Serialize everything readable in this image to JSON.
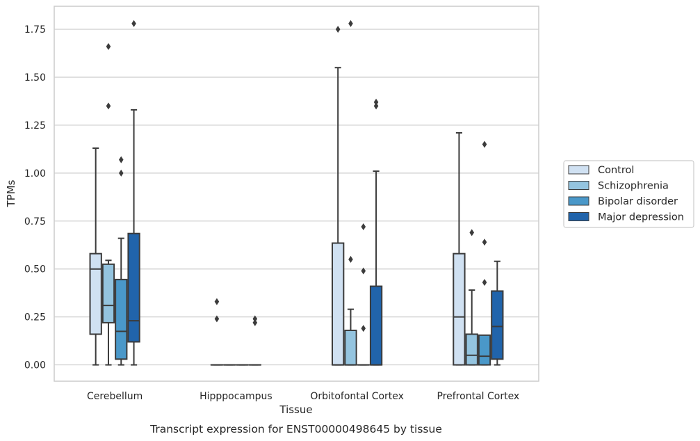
{
  "chart_data": {
    "type": "boxplot",
    "caption": "Transcript expression for ENST00000498645 by tissue",
    "xlabel": "Tissue",
    "ylabel": "TPMs",
    "ylim": [
      -0.085,
      1.87
    ],
    "yticks": [
      0.0,
      0.25,
      0.5,
      0.75,
      1.0,
      1.25,
      1.5,
      1.75
    ],
    "ytick_labels": [
      "0.00",
      "0.25",
      "0.50",
      "0.75",
      "1.00",
      "1.25",
      "1.50",
      "1.75"
    ],
    "grid": "horizontal",
    "legend_position": "right",
    "categories": [
      "Cerebellum",
      "Hipppocampus",
      "Orbitofontal Cortex",
      "Prefrontal Cortex"
    ],
    "series": [
      {
        "name": "Control",
        "color": "#d0e1f2",
        "boxes": [
          {
            "whislo": 0.0,
            "q1": 0.16,
            "med": 0.5,
            "q3": 0.58,
            "whishi": 1.13,
            "fliers": []
          },
          {
            "whislo": 0.0,
            "q1": 0.0,
            "med": 0.0,
            "q3": 0.0,
            "whishi": 0.0,
            "fliers": [
              0.24,
              0.33
            ]
          },
          {
            "whislo": 0.0,
            "q1": 0.0,
            "med": 0.0,
            "q3": 0.635,
            "whishi": 1.55,
            "fliers": [
              1.75
            ]
          },
          {
            "whislo": 0.0,
            "q1": 0.0,
            "med": 0.25,
            "q3": 0.58,
            "whishi": 1.21,
            "fliers": []
          }
        ]
      },
      {
        "name": "Schizophrenia",
        "color": "#94c4df",
        "boxes": [
          {
            "whislo": 0.0,
            "q1": 0.22,
            "med": 0.31,
            "q3": 0.525,
            "whishi": 0.545,
            "fliers": [
              1.35,
              1.66
            ]
          },
          {
            "whislo": 0.0,
            "q1": 0.0,
            "med": 0.0,
            "q3": 0.0,
            "whishi": 0.0,
            "fliers": []
          },
          {
            "whislo": 0.0,
            "q1": 0.0,
            "med": 0.0,
            "q3": 0.18,
            "whishi": 0.29,
            "fliers": [
              0.55,
              1.78
            ]
          },
          {
            "whislo": 0.0,
            "q1": 0.0,
            "med": 0.05,
            "q3": 0.16,
            "whishi": 0.39,
            "fliers": [
              0.69
            ]
          }
        ]
      },
      {
        "name": "Bipolar disorder",
        "color": "#4a98c9",
        "boxes": [
          {
            "whislo": 0.0,
            "q1": 0.03,
            "med": 0.175,
            "q3": 0.445,
            "whishi": 0.66,
            "fliers": [
              1.0,
              1.07
            ]
          },
          {
            "whislo": 0.0,
            "q1": 0.0,
            "med": 0.0,
            "q3": 0.0,
            "whishi": 0.0,
            "fliers": []
          },
          {
            "whislo": 0.0,
            "q1": 0.0,
            "med": 0.0,
            "q3": 0.0,
            "whishi": 0.0,
            "fliers": [
              0.19,
              0.49,
              0.72
            ]
          },
          {
            "whislo": 0.0,
            "q1": 0.0,
            "med": 0.045,
            "q3": 0.155,
            "whishi": 0.155,
            "fliers": [
              0.43,
              0.64,
              1.15
            ]
          }
        ]
      },
      {
        "name": "Major depression",
        "color": "#2164ab",
        "boxes": [
          {
            "whislo": 0.0,
            "q1": 0.12,
            "med": 0.23,
            "q3": 0.685,
            "whishi": 1.33,
            "fliers": [
              1.78
            ]
          },
          {
            "whislo": 0.0,
            "q1": 0.0,
            "med": 0.0,
            "q3": 0.0,
            "whishi": 0.0,
            "fliers": [
              0.22,
              0.24
            ]
          },
          {
            "whislo": 0.0,
            "q1": 0.0,
            "med": 0.0,
            "q3": 0.41,
            "whishi": 1.01,
            "fliers": [
              1.35,
              1.37
            ]
          },
          {
            "whislo": 0.0,
            "q1": 0.03,
            "med": 0.2,
            "q3": 0.385,
            "whishi": 0.54,
            "fliers": []
          }
        ]
      }
    ]
  }
}
